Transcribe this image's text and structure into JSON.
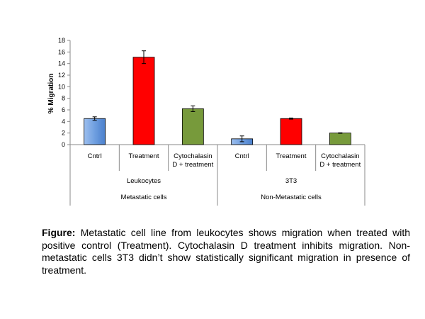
{
  "chart_data": {
    "type": "bar",
    "ylabel": "% Migration",
    "ylim": [
      0,
      18
    ],
    "yticks": [
      0,
      2,
      4,
      6,
      8,
      10,
      12,
      14,
      16,
      18
    ],
    "grid": false,
    "categories": [
      "Cntrl",
      "Treatment",
      "Cytochalasin D + treatment",
      "Cntrl",
      "Treatment",
      "Cytochalasin D + treatment"
    ],
    "category_lines": [
      [
        "Cntrl"
      ],
      [
        "Treatment"
      ],
      [
        "Cytochalasin",
        "D + treatment"
      ],
      [
        "Cntrl"
      ],
      [
        "Treatment"
      ],
      [
        "Cytochalasin",
        "D + treatment"
      ]
    ],
    "values": [
      4.5,
      15.1,
      6.2,
      1.0,
      4.5,
      2.0
    ],
    "errors": [
      0.3,
      1.1,
      0.5,
      0.5,
      0.1,
      0.05
    ],
    "bar_colors": [
      "#6f9fe0",
      "#ff0000",
      "#779a3b",
      "#6f9fe0",
      "#ff0000",
      "#779a3b"
    ],
    "groups_level1": [
      "Leukocytes",
      "3T3"
    ],
    "groups_level2": [
      "Metastatic cells",
      "Non-Metastatic cells"
    ]
  },
  "caption": {
    "label": "Figure:",
    "text": " Metastatic cell line from leukocytes shows migration when treated with positive control (Treatment). Cytochalasin D treatment inhibits migration. Non-metastatic cells 3T3 didn’t show statistically significant migration in presence of treatment."
  }
}
